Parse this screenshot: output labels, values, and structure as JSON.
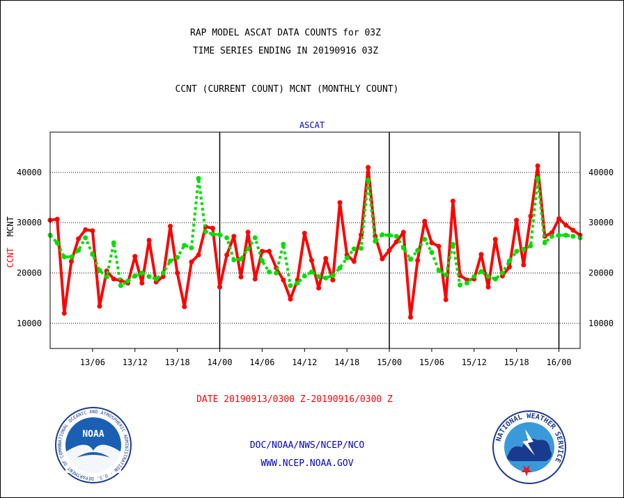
{
  "header": {
    "title_line1": "RAP MODEL ASCAT DATA COUNTS for 03Z",
    "title_line2": "TIME SERIES ENDING IN 20190916 03Z",
    "subtitle": "CCNT (CURRENT COUNT) MCNT (MONTHLY COUNT)"
  },
  "footer": {
    "date_range": "DATE 20190913/0300 Z-20190916/0300 Z",
    "org": "DOC/NOAA/NWS/NCEP/NCO",
    "url": "WWW.NCEP.NOAA.GOV"
  },
  "logos": {
    "noaa_text": "NOAA",
    "noaa_ring": "NATIONAL OCEANIC AND ATMOSPHERIC ADMINISTRATION · U.S. DEPARTMENT OF COMMERCE ·",
    "nws_ring": "NATIONAL WEATHER SERVICE"
  },
  "colors": {
    "ccnt": "#ff0000",
    "mcnt": "#00dd00",
    "text_blue": "#0000cc",
    "grid": "#000000"
  },
  "chart_data": {
    "type": "line",
    "title": "ASCAT",
    "ylabel_ccnt": "CCNT",
    "ylabel_mcnt": "MCNT",
    "ylim": [
      5000,
      48000
    ],
    "yticks": [
      10000,
      20000,
      30000,
      40000
    ],
    "ytick_labels": [
      "10000",
      "20000",
      "30000",
      "40000"
    ],
    "xlim": [
      0,
      73
    ],
    "xticks": [
      6,
      12,
      18,
      24,
      30,
      36,
      42,
      48,
      54,
      60,
      66,
      72
    ],
    "xtick_labels": [
      "13/06",
      "13/12",
      "13/18",
      "14/00",
      "14/06",
      "14/12",
      "14/18",
      "15/00",
      "15/06",
      "15/12",
      "15/18",
      "16/00"
    ],
    "day_boundaries": [
      24,
      48,
      72
    ],
    "grid": "horizontal dotted at y ticks",
    "series": [
      {
        "name": "CCNT",
        "style": "solid",
        "x": [
          0,
          1,
          2,
          3,
          4,
          5,
          6,
          7,
          8,
          9,
          10,
          11,
          12,
          13,
          14,
          15,
          16,
          17,
          18,
          19,
          20,
          21,
          22,
          23,
          24,
          25,
          26,
          27,
          28,
          29,
          30,
          31,
          32,
          33,
          34,
          35,
          36,
          37,
          38,
          39,
          40,
          41,
          42,
          43,
          44,
          45,
          46,
          47,
          48,
          49,
          50,
          51,
          52,
          53,
          54,
          55,
          56,
          57,
          58,
          59,
          60,
          61,
          62,
          63,
          64,
          65,
          66,
          67,
          68,
          69,
          70,
          71,
          72,
          73,
          74,
          75
        ],
        "values": [
          30500,
          30700,
          12000,
          22300,
          26800,
          28600,
          28400,
          13400,
          20400,
          18800,
          18500,
          18000,
          23300,
          18000,
          26500,
          18200,
          19300,
          29300,
          20000,
          13300,
          22200,
          23600,
          29200,
          28900,
          17200,
          23600,
          27300,
          19200,
          28100,
          18800,
          24300,
          24300,
          21000,
          18600,
          14800,
          18600,
          27900,
          22500,
          17000,
          22900,
          18600,
          34000,
          23600,
          22300,
          27600,
          41000,
          27300,
          22800,
          24500,
          26200,
          28100,
          11200,
          22500,
          30300,
          26000,
          25300,
          14700,
          34300,
          19500,
          18600,
          18800,
          23700,
          17200,
          26700,
          19400,
          21200,
          30500,
          21600,
          31300,
          41300,
          27300,
          28000,
          30800,
          29500,
          28500,
          27500
        ]
      },
      {
        "name": "MCNT",
        "style": "dotted",
        "x": [
          0,
          1,
          2,
          3,
          4,
          5,
          6,
          7,
          8,
          9,
          10,
          11,
          12,
          13,
          14,
          15,
          16,
          17,
          18,
          19,
          20,
          21,
          22,
          23,
          24,
          25,
          26,
          27,
          28,
          29,
          30,
          31,
          32,
          33,
          34,
          35,
          36,
          37,
          38,
          39,
          40,
          41,
          42,
          43,
          44,
          45,
          46,
          47,
          48,
          49,
          50,
          51,
          52,
          53,
          54,
          55,
          56,
          57,
          58,
          59,
          60,
          61,
          62,
          63,
          64,
          65,
          66,
          67,
          68,
          69,
          70,
          71,
          72,
          73,
          74,
          75
        ],
        "values": [
          27500,
          26000,
          23200,
          23200,
          24500,
          27000,
          23700,
          20500,
          19200,
          26000,
          17500,
          18400,
          19400,
          20000,
          19300,
          18800,
          20000,
          22400,
          23100,
          25500,
          25000,
          38800,
          28200,
          27700,
          27600,
          27000,
          22600,
          22800,
          24800,
          27000,
          22400,
          20200,
          20000,
          25700,
          17500,
          18000,
          19400,
          20200,
          19300,
          19000,
          19500,
          21000,
          23000,
          24800,
          24900,
          38500,
          26300,
          27600,
          27500,
          27300,
          25000,
          22700,
          24500,
          26700,
          24100,
          20500,
          19600,
          25700,
          17600,
          18000,
          19300,
          20300,
          19300,
          18800,
          20000,
          22400,
          24300,
          24700,
          25400,
          38800,
          26000,
          27300,
          27500,
          27500,
          27300,
          27000
        ]
      }
    ]
  }
}
